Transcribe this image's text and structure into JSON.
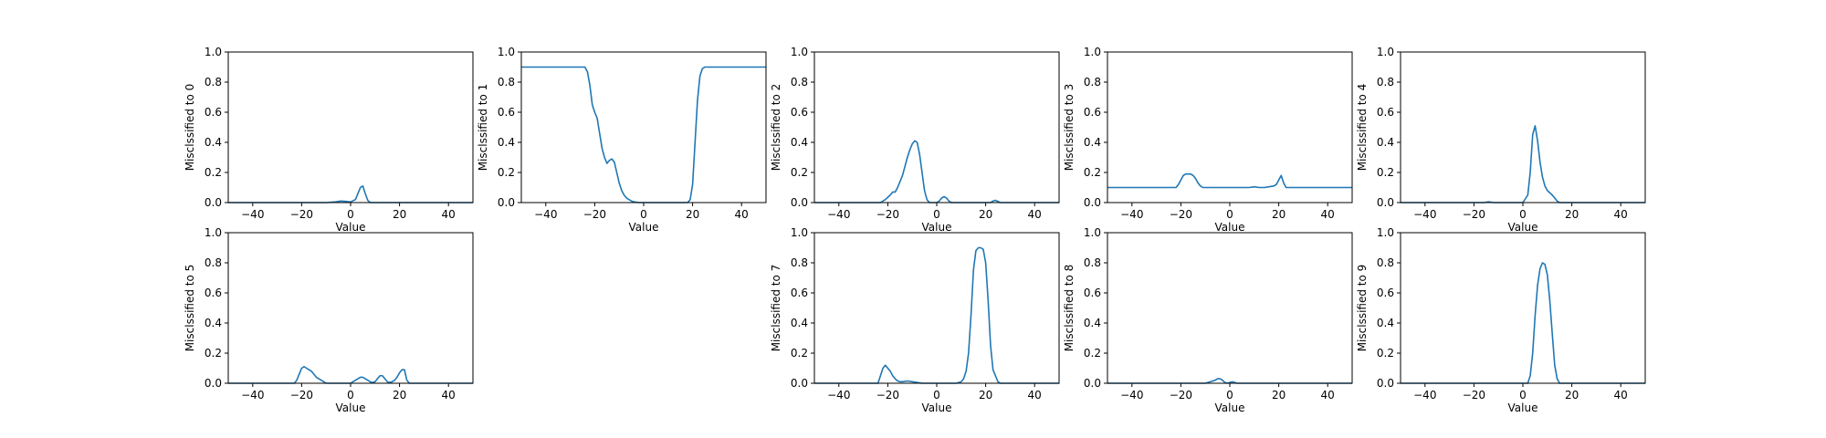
{
  "chart_data": [
    {
      "type": "line",
      "xlabel": "Value",
      "ylabel": "Misclssified to 0",
      "xlim": [
        -50,
        50
      ],
      "ylim": [
        0,
        1
      ],
      "xticks": [
        -40,
        -20,
        0,
        20,
        40
      ],
      "yticks": [
        0.0,
        0.2,
        0.4,
        0.6,
        0.8,
        1.0
      ],
      "color": "#1f77b4",
      "series": [
        {
          "x": [
            -50,
            -10,
            -6,
            -4,
            -2,
            0,
            2,
            3,
            4,
            5,
            6,
            7,
            8,
            10,
            20,
            50
          ],
          "y": [
            0,
            0,
            0.005,
            0.01,
            0.008,
            0.004,
            0.02,
            0.06,
            0.1,
            0.11,
            0.06,
            0.015,
            0,
            0,
            0,
            0
          ]
        }
      ]
    },
    {
      "type": "line",
      "xlabel": "Value",
      "ylabel": "Misclssified to 1",
      "xlim": [
        -50,
        50
      ],
      "ylim": [
        0,
        1
      ],
      "xticks": [
        -40,
        -20,
        0,
        20,
        40
      ],
      "yticks": [
        0.0,
        0.2,
        0.4,
        0.6,
        0.8,
        1.0
      ],
      "color": "#1f77b4",
      "series": [
        {
          "x": [
            -50,
            -24,
            -23,
            -22,
            -21,
            -20,
            -19,
            -18,
            -17,
            -16,
            -15,
            -14,
            -13,
            -12,
            -11,
            -10,
            -9,
            -8,
            -7,
            -6,
            -5,
            -4,
            -2,
            0,
            18,
            19,
            20,
            21,
            22,
            23,
            24,
            25,
            26,
            28,
            50
          ],
          "y": [
            0.9,
            0.9,
            0.87,
            0.78,
            0.65,
            0.6,
            0.56,
            0.46,
            0.36,
            0.3,
            0.26,
            0.28,
            0.29,
            0.27,
            0.2,
            0.13,
            0.08,
            0.05,
            0.03,
            0.02,
            0.01,
            0.005,
            0,
            0,
            0,
            0.02,
            0.12,
            0.4,
            0.68,
            0.84,
            0.89,
            0.9,
            0.9,
            0.9,
            0.9
          ]
        }
      ]
    },
    {
      "type": "line",
      "xlabel": "Value",
      "ylabel": "Misclssified to 2",
      "xlim": [
        -50,
        50
      ],
      "ylim": [
        0,
        1
      ],
      "xticks": [
        -40,
        -20,
        0,
        20,
        40
      ],
      "yticks": [
        0.0,
        0.2,
        0.4,
        0.6,
        0.8,
        1.0
      ],
      "color": "#1f77b4",
      "series": [
        {
          "x": [
            -50,
            -23,
            -21,
            -19,
            -18,
            -17,
            -16,
            -15,
            -14,
            -13,
            -12,
            -11,
            -10,
            -9,
            -8,
            -7,
            -6,
            -5,
            -4,
            -3,
            -2,
            -1,
            0,
            1,
            2,
            3,
            4,
            5,
            6,
            20,
            22,
            23,
            24,
            26,
            50
          ],
          "y": [
            0,
            0,
            0.02,
            0.05,
            0.07,
            0.07,
            0.1,
            0.14,
            0.18,
            0.24,
            0.3,
            0.35,
            0.39,
            0.41,
            0.4,
            0.32,
            0.2,
            0.08,
            0.02,
            0,
            0,
            0,
            0,
            0.01,
            0.03,
            0.04,
            0.03,
            0.01,
            0,
            0,
            0,
            0.01,
            0.015,
            0,
            0
          ]
        }
      ]
    },
    {
      "type": "line",
      "xlabel": "Value",
      "ylabel": "Misclssified to 3",
      "xlim": [
        -50,
        50
      ],
      "ylim": [
        0,
        1
      ],
      "xticks": [
        -40,
        -20,
        0,
        20,
        40
      ],
      "yticks": [
        0.0,
        0.2,
        0.4,
        0.6,
        0.8,
        1.0
      ],
      "color": "#1f77b4",
      "series": [
        {
          "x": [
            -50,
            -22,
            -21,
            -20,
            -19,
            -18,
            -17,
            -16,
            -15,
            -14,
            -13,
            -12,
            -11,
            -10,
            -8,
            -6,
            -4,
            -2,
            0,
            2,
            4,
            6,
            8,
            10,
            12,
            14,
            16,
            18,
            19,
            20,
            21,
            22,
            23,
            24,
            50
          ],
          "y": [
            0.1,
            0.1,
            0.12,
            0.15,
            0.18,
            0.19,
            0.19,
            0.19,
            0.18,
            0.16,
            0.13,
            0.11,
            0.1,
            0.1,
            0.1,
            0.1,
            0.1,
            0.1,
            0.1,
            0.1,
            0.1,
            0.1,
            0.1,
            0.105,
            0.1,
            0.1,
            0.105,
            0.11,
            0.12,
            0.15,
            0.18,
            0.13,
            0.1,
            0.1,
            0.1
          ]
        }
      ]
    },
    {
      "type": "line",
      "xlabel": "Value",
      "ylabel": "Misclssified to 4",
      "xlim": [
        -50,
        50
      ],
      "ylim": [
        0,
        1
      ],
      "xticks": [
        -40,
        -20,
        0,
        20,
        40
      ],
      "yticks": [
        0.0,
        0.2,
        0.4,
        0.6,
        0.8,
        1.0
      ],
      "color": "#1f77b4",
      "series": [
        {
          "x": [
            -50,
            -16,
            -14,
            -12,
            0,
            2,
            3,
            4,
            5,
            6,
            7,
            8,
            9,
            10,
            12,
            13,
            14,
            15,
            16,
            50
          ],
          "y": [
            0,
            0,
            0.005,
            0,
            0,
            0.05,
            0.2,
            0.45,
            0.51,
            0.41,
            0.27,
            0.17,
            0.11,
            0.08,
            0.05,
            0.03,
            0.01,
            0,
            0,
            0
          ]
        }
      ]
    },
    {
      "type": "line",
      "xlabel": "Value",
      "ylabel": "Misclssified to 5",
      "xlim": [
        -50,
        50
      ],
      "ylim": [
        0,
        1
      ],
      "xticks": [
        -40,
        -20,
        0,
        20,
        40
      ],
      "yticks": [
        0.0,
        0.2,
        0.4,
        0.6,
        0.8,
        1.0
      ],
      "color": "#1f77b4",
      "series": [
        {
          "x": [
            -50,
            -23,
            -22,
            -21,
            -20,
            -19,
            -18,
            -17,
            -16,
            -15,
            -14,
            -13,
            -12,
            -11,
            -10,
            -8,
            -6,
            -4,
            0,
            1,
            2,
            3,
            4,
            5,
            6,
            7,
            8,
            9,
            10,
            11,
            12,
            13,
            14,
            15,
            16,
            17,
            18,
            19,
            20,
            21,
            22,
            23,
            24,
            50
          ],
          "y": [
            0,
            0,
            0.02,
            0.06,
            0.1,
            0.11,
            0.1,
            0.09,
            0.08,
            0.06,
            0.04,
            0.03,
            0.02,
            0.01,
            0,
            0,
            0,
            0,
            0,
            0.01,
            0.02,
            0.03,
            0.04,
            0.04,
            0.03,
            0.02,
            0.01,
            0.005,
            0.01,
            0.03,
            0.05,
            0.05,
            0.03,
            0.01,
            0.005,
            0.01,
            0.02,
            0.04,
            0.07,
            0.09,
            0.09,
            0.02,
            0,
            0
          ]
        }
      ]
    },
    {
      "type": "line",
      "xlabel": "Value",
      "ylabel": "Misclssified to 7",
      "xlim": [
        -50,
        50
      ],
      "ylim": [
        0,
        1
      ],
      "xticks": [
        -40,
        -20,
        0,
        20,
        40
      ],
      "yticks": [
        0.0,
        0.2,
        0.4,
        0.6,
        0.8,
        1.0
      ],
      "color": "#1f77b4",
      "series": [
        {
          "x": [
            -50,
            -24,
            -23,
            -22,
            -21,
            -20,
            -19,
            -18,
            -17,
            -16,
            -15,
            -14,
            -12,
            -10,
            -8,
            -6,
            -4,
            0,
            8,
            10,
            11,
            12,
            13,
            14,
            15,
            16,
            17,
            18,
            19,
            20,
            21,
            22,
            23,
            24,
            25,
            26,
            50
          ],
          "y": [
            0,
            0,
            0.05,
            0.1,
            0.12,
            0.1,
            0.08,
            0.05,
            0.03,
            0.015,
            0.01,
            0.01,
            0.015,
            0.01,
            0.005,
            0,
            0,
            0,
            0,
            0.01,
            0.03,
            0.08,
            0.2,
            0.45,
            0.75,
            0.88,
            0.9,
            0.9,
            0.89,
            0.8,
            0.55,
            0.25,
            0.09,
            0.05,
            0.01,
            0,
            0
          ]
        }
      ]
    },
    {
      "type": "line",
      "xlabel": "Value",
      "ylabel": "Misclssified to 8",
      "xlim": [
        -50,
        50
      ],
      "ylim": [
        0,
        1
      ],
      "xticks": [
        -40,
        -20,
        0,
        20,
        40
      ],
      "yticks": [
        0.0,
        0.2,
        0.4,
        0.6,
        0.8,
        1.0
      ],
      "color": "#1f77b4",
      "series": [
        {
          "x": [
            -50,
            -10,
            -8,
            -6,
            -5,
            -4,
            -3,
            -2,
            -1,
            0,
            1,
            2,
            3,
            50
          ],
          "y": [
            0,
            0,
            0.01,
            0.02,
            0.03,
            0.03,
            0.02,
            0.005,
            0,
            0.005,
            0.01,
            0.005,
            0,
            0
          ]
        }
      ]
    },
    {
      "type": "line",
      "xlabel": "Value",
      "ylabel": "Misclssified to 9",
      "xlim": [
        -50,
        50
      ],
      "ylim": [
        0,
        1
      ],
      "xticks": [
        -40,
        -20,
        0,
        20,
        40
      ],
      "yticks": [
        0.0,
        0.2,
        0.4,
        0.6,
        0.8,
        1.0
      ],
      "color": "#1f77b4",
      "series": [
        {
          "x": [
            -50,
            2,
            3,
            4,
            5,
            6,
            7,
            8,
            9,
            10,
            11,
            12,
            13,
            14,
            15,
            16,
            50
          ],
          "y": [
            0,
            0,
            0.05,
            0.2,
            0.45,
            0.65,
            0.76,
            0.8,
            0.79,
            0.72,
            0.55,
            0.33,
            0.12,
            0.03,
            0,
            0,
            0
          ]
        }
      ]
    }
  ]
}
